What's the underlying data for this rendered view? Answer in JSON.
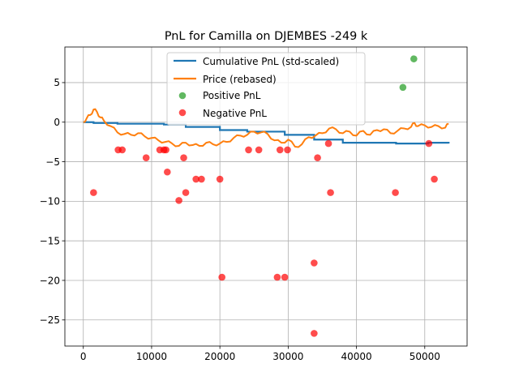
{
  "chart_data": {
    "type": "line",
    "title": "PnL for Camilla on DJEMBES -249 k",
    "xlabel": "",
    "ylabel": "",
    "xlim": [
      -2700,
      56200
    ],
    "ylim": [
      -28.3,
      9.5
    ],
    "xticks": [
      0,
      10000,
      20000,
      30000,
      40000,
      50000
    ],
    "xtick_labels": [
      "0",
      "10000",
      "20000",
      "30000",
      "40000",
      "50000"
    ],
    "yticks": [
      5,
      0,
      -5,
      -10,
      -15,
      -20,
      -25
    ],
    "ytick_labels": [
      "5",
      "0",
      "−5",
      "−10",
      "−15",
      "−20",
      "−25"
    ],
    "grid": true,
    "legend_position": "upper center",
    "legend": [
      "Cumulative PnL (std-scaled)",
      "Price (rebased)",
      "Positive PnL",
      "Negative PnL"
    ],
    "colors": {
      "cumulative": "#1f77b4",
      "price": "#ff7f0e",
      "positive": "#2ca02c",
      "negative": "#ff0000",
      "grid": "#b0b0b0"
    },
    "series": [
      {
        "name": "Cumulative PnL (std-scaled)",
        "kind": "step",
        "x": [
          0,
          1500,
          5000,
          11800,
          15000,
          20000,
          24000,
          29500,
          33800,
          38000,
          45800,
          50500,
          53500
        ],
        "y": [
          0,
          -0.1,
          -0.2,
          -0.3,
          -0.6,
          -1.0,
          -1.2,
          -1.6,
          -2.2,
          -2.6,
          -2.7,
          -2.6,
          -2.7
        ]
      },
      {
        "name": "Price (rebased)",
        "kind": "line",
        "x": [
          0,
          500,
          1000,
          1500,
          2000,
          2500,
          3000,
          4000,
          5000,
          6000,
          7000,
          8000,
          9000,
          10000,
          11000,
          12000,
          13000,
          14000,
          15000,
          16000,
          17000,
          18000,
          19000,
          20000,
          21000,
          22000,
          23000,
          24000,
          25000,
          26000,
          27000,
          28000,
          29000,
          30000,
          31000,
          32000,
          33000,
          34000,
          35000,
          36000,
          37000,
          38000,
          39000,
          40000,
          41000,
          42000,
          43000,
          44000,
          45000,
          46000,
          47000,
          48000,
          48500,
          49000,
          50000,
          51000,
          52000,
          53000,
          53500
        ],
        "y": [
          0,
          0.5,
          0.9,
          1.6,
          1.3,
          0.6,
          0.2,
          -0.5,
          -1.3,
          -1.5,
          -1.6,
          -1.4,
          -1.8,
          -2.0,
          -2.3,
          -2.5,
          -2.7,
          -3.0,
          -2.6,
          -2.9,
          -3.0,
          -2.6,
          -2.8,
          -2.7,
          -2.5,
          -2.0,
          -1.7,
          -1.6,
          -1.2,
          -1.3,
          -1.5,
          -2.3,
          -2.6,
          -2.2,
          -3.1,
          -2.8,
          -1.9,
          -1.7,
          -1.4,
          -0.8,
          -0.9,
          -1.4,
          -1.2,
          -1.7,
          -1.1,
          -1.6,
          -1.0,
          -0.9,
          -1.4,
          -1.1,
          -0.8,
          -0.6,
          -0.1,
          -0.5,
          -0.4,
          -0.6,
          -0.5,
          -0.7,
          -0.2
        ]
      }
    ],
    "positive_points": {
      "name": "Positive PnL",
      "x": [
        46800,
        48400
      ],
      "y": [
        4.4,
        8.0
      ]
    },
    "negative_points": {
      "name": "Negative PnL",
      "x": [
        1500,
        5100,
        5700,
        9200,
        11200,
        11800,
        12100,
        12300,
        14000,
        14700,
        15000,
        16500,
        17300,
        20000,
        20300,
        24200,
        25700,
        28400,
        28800,
        29500,
        29900,
        33800,
        33800,
        34300,
        35900,
        36200,
        45700,
        50600,
        51400
      ],
      "y": [
        -8.9,
        -3.5,
        -3.5,
        -4.5,
        -3.5,
        -3.5,
        -3.5,
        -6.3,
        -9.9,
        -4.5,
        -8.9,
        -7.2,
        -7.2,
        -7.2,
        -19.6,
        -3.5,
        -3.5,
        -19.6,
        -3.5,
        -19.6,
        -3.5,
        -17.8,
        -26.7,
        -4.5,
        -2.7,
        -8.9,
        -8.9,
        -2.7,
        -7.2
      ]
    }
  }
}
